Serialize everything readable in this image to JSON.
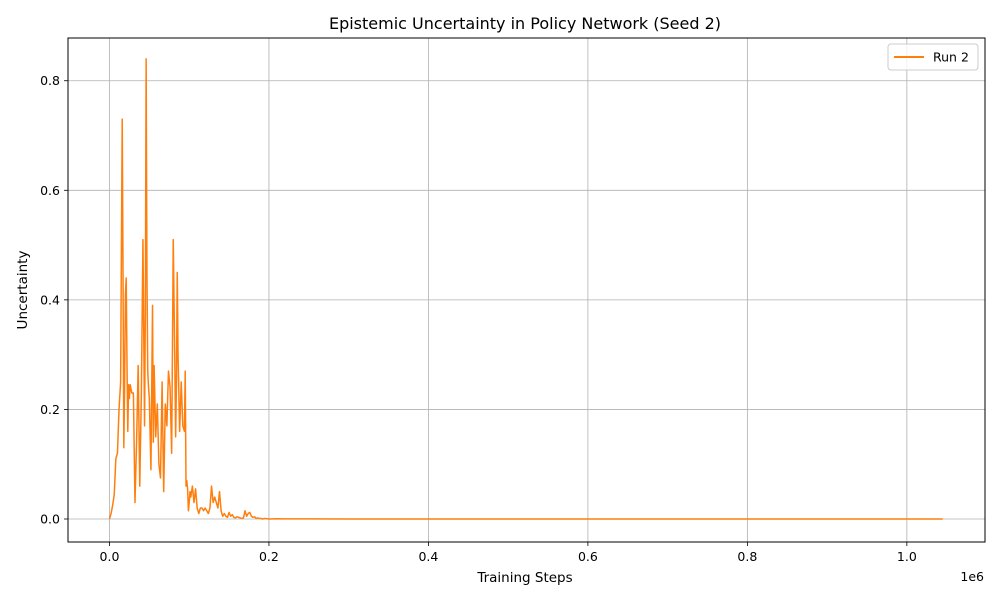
{
  "chart_data": {
    "type": "line",
    "title": "Epistemic Uncertainty in Policy Network (Seed 2)",
    "xlabel": "Training Steps",
    "ylabel": "Uncertainty",
    "x_offset_label": "1e6",
    "xlim": [
      -0.052,
      1.098
    ],
    "ylim": [
      -0.042,
      0.878
    ],
    "x_ticks": [
      0.0,
      0.2,
      0.4,
      0.6,
      0.8,
      1.0
    ],
    "x_tick_labels": [
      "0.0",
      "0.2",
      "0.4",
      "0.6",
      "0.8",
      "1.0"
    ],
    "y_ticks": [
      0.0,
      0.2,
      0.4,
      0.6,
      0.8
    ],
    "y_tick_labels": [
      "0.0",
      "0.2",
      "0.4",
      "0.6",
      "0.8"
    ],
    "grid": true,
    "legend_position": "top-right",
    "series": [
      {
        "name": "Run 2",
        "color": "#ff7f0e",
        "x": [
          0.0,
          0.002,
          0.004,
          0.006,
          0.008,
          0.01,
          0.012,
          0.014,
          0.016,
          0.017,
          0.018,
          0.019,
          0.02,
          0.021,
          0.022,
          0.023,
          0.024,
          0.025,
          0.026,
          0.028,
          0.03,
          0.032,
          0.034,
          0.036,
          0.038,
          0.04,
          0.042,
          0.044,
          0.045,
          0.046,
          0.047,
          0.048,
          0.049,
          0.05,
          0.052,
          0.054,
          0.055,
          0.056,
          0.058,
          0.06,
          0.062,
          0.064,
          0.066,
          0.068,
          0.07,
          0.072,
          0.074,
          0.076,
          0.078,
          0.08,
          0.082,
          0.083,
          0.084,
          0.085,
          0.086,
          0.088,
          0.09,
          0.092,
          0.094,
          0.095,
          0.096,
          0.097,
          0.098,
          0.099,
          0.1,
          0.101,
          0.102,
          0.104,
          0.106,
          0.108,
          0.11,
          0.112,
          0.114,
          0.116,
          0.118,
          0.12,
          0.122,
          0.124,
          0.126,
          0.128,
          0.13,
          0.132,
          0.134,
          0.136,
          0.138,
          0.14,
          0.142,
          0.144,
          0.146,
          0.148,
          0.15,
          0.152,
          0.154,
          0.156,
          0.158,
          0.16,
          0.162,
          0.164,
          0.166,
          0.168,
          0.17,
          0.172,
          0.174,
          0.176,
          0.178,
          0.18,
          0.182,
          0.184,
          0.186,
          0.188,
          0.19,
          0.192,
          0.195,
          0.2,
          0.21,
          0.22,
          0.25,
          0.3,
          0.4,
          0.5,
          0.6,
          0.7,
          0.8,
          0.9,
          1.0,
          1.045
        ],
        "y": [
          0.0,
          0.01,
          0.025,
          0.045,
          0.11,
          0.12,
          0.2,
          0.25,
          0.73,
          0.45,
          0.13,
          0.24,
          0.41,
          0.44,
          0.28,
          0.16,
          0.245,
          0.22,
          0.245,
          0.23,
          0.23,
          0.03,
          0.14,
          0.28,
          0.06,
          0.23,
          0.51,
          0.17,
          0.38,
          0.84,
          0.45,
          0.27,
          0.24,
          0.22,
          0.09,
          0.39,
          0.14,
          0.28,
          0.15,
          0.21,
          0.1,
          0.075,
          0.25,
          0.05,
          0.21,
          0.17,
          0.27,
          0.24,
          0.12,
          0.51,
          0.28,
          0.15,
          0.25,
          0.45,
          0.3,
          0.16,
          0.25,
          0.17,
          0.16,
          0.27,
          0.06,
          0.07,
          0.055,
          0.015,
          0.03,
          0.05,
          0.04,
          0.06,
          0.03,
          0.055,
          0.02,
          0.01,
          0.02,
          0.02,
          0.015,
          0.02,
          0.015,
          0.01,
          0.02,
          0.06,
          0.03,
          0.04,
          0.03,
          0.02,
          0.05,
          0.015,
          0.005,
          0.01,
          0.005,
          0.003,
          0.012,
          0.005,
          0.008,
          0.003,
          0.002,
          0.004,
          0.003,
          0.002,
          0.001,
          0.002,
          0.015,
          0.005,
          0.01,
          0.012,
          0.005,
          0.003,
          0.004,
          0.001,
          0.002,
          0.001,
          0.001,
          0.0,
          0.001,
          0.0,
          0.0005,
          0.0003,
          0.0002,
          0.0001,
          0.0,
          0.0,
          0.0,
          0.0,
          0.0,
          0.0,
          0.0,
          0.0
        ]
      }
    ]
  }
}
